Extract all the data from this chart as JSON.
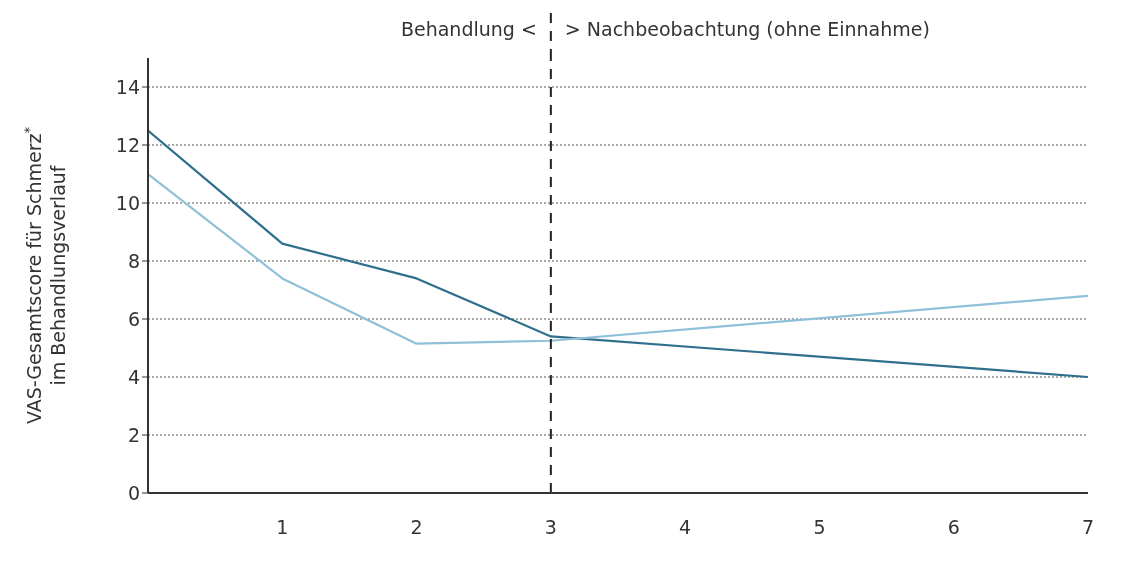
{
  "chart_data": {
    "type": "line",
    "ylabel": "VAS-Gesamtscore für Schmerz$^{*}$\nim Behandlungsverlauf",
    "x": [
      0,
      1,
      2,
      3,
      7
    ],
    "series": [
      {
        "color": "#2f6f8c",
        "values": [
          12.5,
          8.6,
          7.4,
          5.4,
          4.0
        ]
      },
      {
        "color": "#8fc0d8",
        "values": [
          11.0,
          7.4,
          5.15,
          5.25,
          6.8
        ]
      }
    ],
    "xlim": [
      0,
      7
    ],
    "xticks": [
      1,
      2,
      3,
      4,
      5,
      6,
      7
    ],
    "ylim": [
      0,
      15
    ],
    "yticks": [
      0,
      2,
      4,
      6,
      8,
      10,
      12,
      14
    ],
    "grid": "y",
    "marker": "none",
    "line_style": "solid",
    "legend": false,
    "ref_lines": [
      {
        "axis": "x",
        "value": 3,
        "color": "#222222",
        "line_style": "dashed"
      }
    ],
    "annotations": [
      "Behandlung <",
      "> Nachbeobachtung (ohne Einnahme)"
    ]
  }
}
